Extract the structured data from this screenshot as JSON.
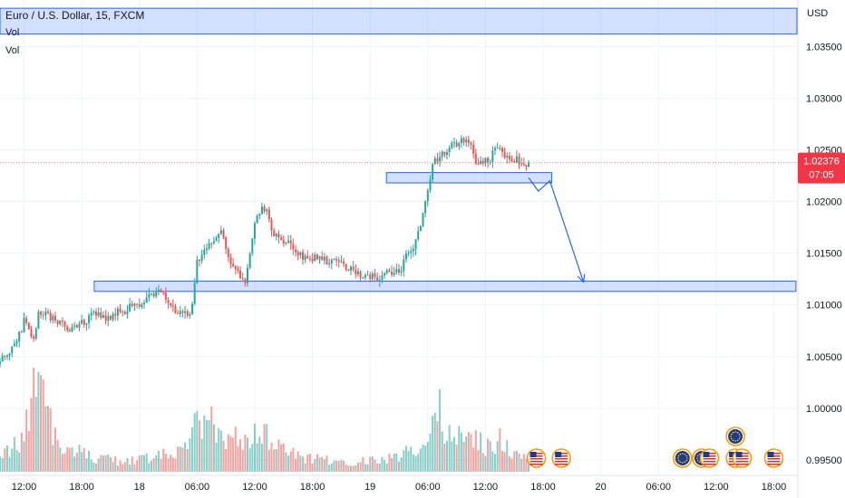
{
  "header": {
    "symbol_title": "Euro / U.S. Dollar, 15, FXCM",
    "currency": "USD",
    "volume_labels": [
      "Vol",
      "Vol"
    ]
  },
  "price_badge": {
    "price": "1.02376",
    "countdown": "07:05",
    "color": "#f23645"
  },
  "chart_data": {
    "type": "candlestick",
    "title": "Euro / U.S. Dollar, 15, FXCM",
    "y_unit": "USD",
    "ylim": [
      0.9935,
      1.0395
    ],
    "y_ticks": [
      "1.03500",
      "1.03000",
      "1.02500",
      "1.02000",
      "1.01500",
      "1.01000",
      "1.00500",
      "1.00000",
      "0.99500"
    ],
    "y_tick_values": [
      1.035,
      1.03,
      1.025,
      1.02,
      1.015,
      1.01,
      1.005,
      1.0,
      0.995
    ],
    "x_ticks": [
      "12:00",
      "18:00",
      "18",
      "06:00",
      "12:00",
      "18:00",
      "19",
      "06:00",
      "12:00",
      "18:00",
      "20",
      "06:00",
      "12:00",
      "18:00"
    ],
    "x_tick_hours": [
      12,
      18,
      24,
      30,
      36,
      42,
      48,
      54,
      60,
      66,
      72,
      78,
      84,
      90
    ],
    "x_range_hours": [
      9.5,
      92.5
    ],
    "bar_interval_hours": 0.25,
    "last_price": 1.02376,
    "up_color": "#26a69a",
    "down_color": "#ef5350",
    "price_path_anchors": [
      [
        9.5,
        1.0043
      ],
      [
        11.0,
        1.0058
      ],
      [
        12.5,
        1.0085
      ],
      [
        13.3,
        1.0065
      ],
      [
        13.8,
        1.0095
      ],
      [
        15.5,
        1.0085
      ],
      [
        17.0,
        1.0078
      ],
      [
        18.5,
        1.0083
      ],
      [
        19.5,
        1.009
      ],
      [
        21.0,
        1.0088
      ],
      [
        22.5,
        1.0095
      ],
      [
        24.0,
        1.01
      ],
      [
        25.5,
        1.0112
      ],
      [
        26.5,
        1.011
      ],
      [
        28.0,
        1.0095
      ],
      [
        29.5,
        1.009
      ],
      [
        30.3,
        1.014
      ],
      [
        31.5,
        1.016
      ],
      [
        32.5,
        1.017
      ],
      [
        34.0,
        1.014
      ],
      [
        35.2,
        1.0125
      ],
      [
        36.5,
        1.0185
      ],
      [
        37.2,
        1.0195
      ],
      [
        38.2,
        1.017
      ],
      [
        39.5,
        1.016
      ],
      [
        40.5,
        1.015
      ],
      [
        42.0,
        1.0145
      ],
      [
        44.0,
        1.0143
      ],
      [
        45.0,
        1.0141
      ],
      [
        47.0,
        1.013
      ],
      [
        49.0,
        1.0127
      ],
      [
        51.0,
        1.0132
      ],
      [
        52.5,
        1.015
      ],
      [
        53.5,
        1.018
      ],
      [
        54.2,
        1.021
      ],
      [
        54.8,
        1.024
      ],
      [
        56.0,
        1.0245
      ],
      [
        57.0,
        1.0255
      ],
      [
        58.5,
        1.026
      ],
      [
        59.5,
        1.0235
      ],
      [
        60.5,
        1.024
      ],
      [
        61.5,
        1.025
      ],
      [
        62.5,
        1.0245
      ],
      [
        63.5,
        1.024
      ],
      [
        64.5,
        1.0237
      ]
    ],
    "volume_path_anchors": [
      [
        9.5,
        0.5
      ],
      [
        11.5,
        0.6
      ],
      [
        12.5,
        1.6
      ],
      [
        13.5,
        1.9
      ],
      [
        14.5,
        1.2
      ],
      [
        16.0,
        0.6
      ],
      [
        19.0,
        0.35
      ],
      [
        22.0,
        0.25
      ],
      [
        25.0,
        0.3
      ],
      [
        27.0,
        0.4
      ],
      [
        29.0,
        0.5
      ],
      [
        30.0,
        1.2
      ],
      [
        31.0,
        1.0
      ],
      [
        33.0,
        0.8
      ],
      [
        35.0,
        0.7
      ],
      [
        36.5,
        0.9
      ],
      [
        37.5,
        0.8
      ],
      [
        39.0,
        0.5
      ],
      [
        42.0,
        0.3
      ],
      [
        45.0,
        0.22
      ],
      [
        48.0,
        0.25
      ],
      [
        51.0,
        0.35
      ],
      [
        53.5,
        0.7
      ],
      [
        55.0,
        1.3
      ],
      [
        56.5,
        1.05
      ],
      [
        58.0,
        0.75
      ],
      [
        60.0,
        0.65
      ],
      [
        62.0,
        0.6
      ],
      [
        63.0,
        0.4
      ],
      [
        64.5,
        0.3
      ]
    ],
    "volume_spikes": [
      [
        13.6,
        2.3
      ],
      [
        12.8,
        1.7
      ],
      [
        31.6,
        1.5
      ],
      [
        55.2,
        1.9
      ],
      [
        29.9,
        1.4
      ],
      [
        36.9,
        1.1
      ],
      [
        61.4,
        1.0
      ]
    ],
    "annotations": {
      "rectangles": [
        {
          "x0_hours": 19.3,
          "x1_hours": 92.3,
          "y0": 1.0113,
          "y1": 1.0123,
          "color": "#2962ff"
        },
        {
          "x0_hours": 49.7,
          "x1_hours": 66.9,
          "y0": 1.0218,
          "y1": 1.0228,
          "color": "#2962ff"
        },
        {
          "x0_hours": 0.0,
          "x1_hours": 92.0,
          "y0": 1.0362,
          "y1": 1.0387,
          "color": "#2962ff"
        }
      ],
      "arrow_path": [
        [
          64.5,
          1.0223
        ],
        [
          65.5,
          1.021
        ],
        [
          66.7,
          1.022
        ],
        [
          70.2,
          1.0122
        ]
      ],
      "arrow_color": "#2962ff"
    },
    "event_markers": [
      {
        "type": "us-flag",
        "x_hours": 65.3
      },
      {
        "type": "us-flag",
        "x_hours": 67.9
      },
      {
        "type": "eu-flag",
        "x_hours": 80.5
      },
      {
        "type": "eu-flag",
        "x_hours": 82.5
      },
      {
        "type": "us-flag",
        "x_hours": 83.3
      },
      {
        "type": "eu-flag",
        "x_hours": 86.0,
        "row": 2
      },
      {
        "type": "us-flag",
        "x_hours": 86.0
      },
      {
        "type": "us-flag",
        "x_hours": 86.7
      },
      {
        "type": "us-flag",
        "x_hours": 90.0
      }
    ]
  }
}
